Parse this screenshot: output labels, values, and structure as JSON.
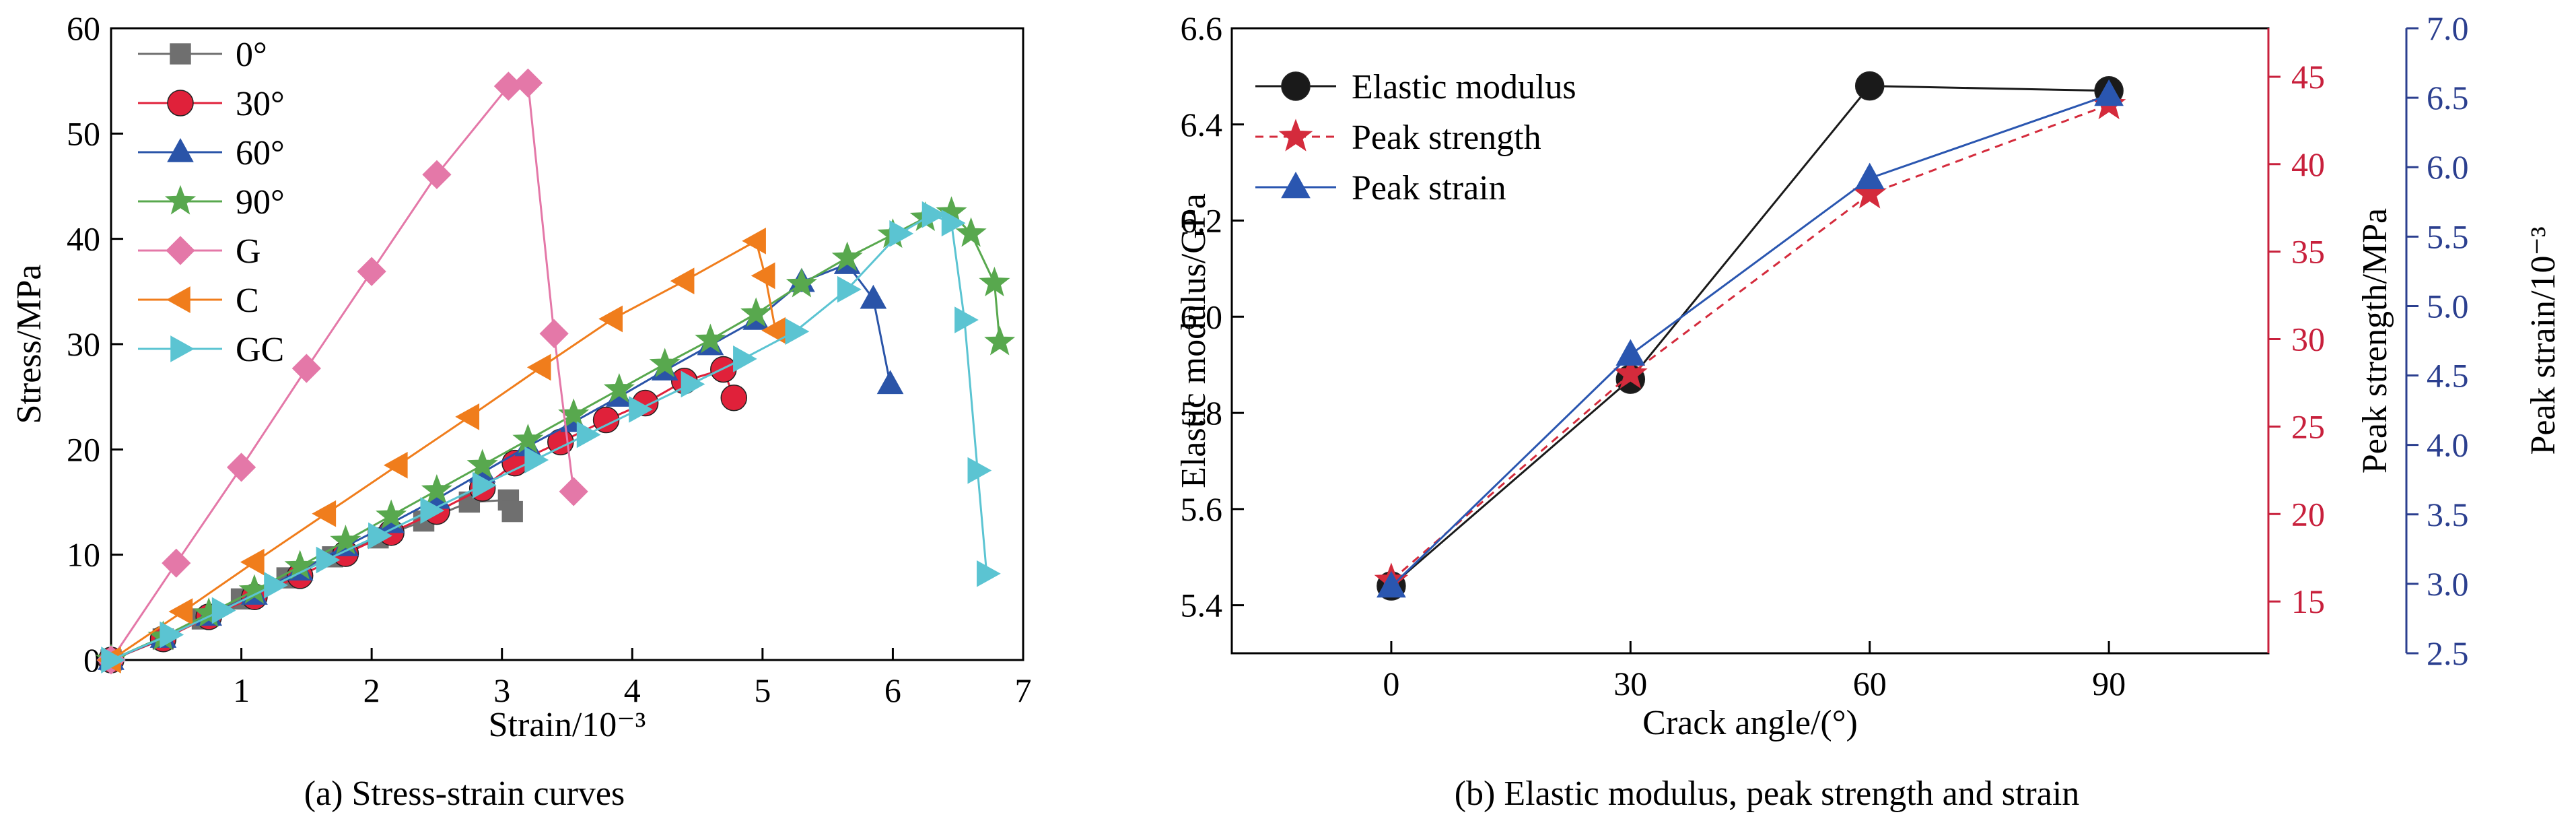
{
  "chart_data": [
    {
      "type": "line",
      "caption": "(a) Stress-strain curves",
      "xlabel": "Strain/10⁻³",
      "ylabel": "Stress/MPa",
      "xlim": [
        0,
        7
      ],
      "ylim": [
        0,
        60
      ],
      "xticks": [
        1,
        2,
        3,
        4,
        5,
        6,
        7
      ],
      "yticks": [
        0,
        10,
        20,
        30,
        40,
        50,
        60
      ],
      "grid": false,
      "legend_position": "top-left",
      "series": [
        {
          "name": "0°",
          "marker": "square",
          "color": "#6f6f6f",
          "x": [
            0.0,
            0.4,
            0.7,
            1.0,
            1.35,
            1.7,
            2.05,
            2.4,
            2.75,
            3.05,
            3.08
          ],
          "y": [
            0,
            2.0,
            3.9,
            5.8,
            7.8,
            9.8,
            11.6,
            13.2,
            15.0,
            15.2,
            14.1
          ]
        },
        {
          "name": "30°",
          "marker": "circle",
          "color": "#e0213a",
          "x": [
            0.0,
            0.4,
            0.75,
            1.1,
            1.45,
            1.8,
            2.15,
            2.5,
            2.85,
            3.1,
            3.45,
            3.8,
            4.1,
            4.4,
            4.7,
            4.78
          ],
          "y": [
            0,
            2.0,
            4.1,
            6.0,
            8.0,
            10.1,
            12.1,
            14.1,
            16.3,
            18.7,
            20.7,
            22.8,
            24.4,
            26.5,
            27.6,
            24.9
          ]
        },
        {
          "name": "60°",
          "marker": "triangle-up",
          "color": "#2a54a8",
          "x": [
            0.0,
            0.4,
            0.75,
            1.1,
            1.45,
            1.8,
            2.15,
            2.5,
            2.85,
            3.2,
            3.55,
            3.9,
            4.25,
            4.6,
            4.95,
            5.3,
            5.65,
            5.85,
            5.98
          ],
          "y": [
            0,
            2.1,
            4.2,
            6.2,
            8.5,
            10.8,
            13.0,
            15.3,
            17.8,
            20.3,
            22.6,
            25.0,
            27.5,
            29.9,
            32.3,
            35.9,
            37.6,
            34.3,
            26.2
          ]
        },
        {
          "name": "90°",
          "marker": "star",
          "color": "#58a84e",
          "x": [
            0.0,
            0.4,
            0.75,
            1.1,
            1.45,
            1.8,
            2.15,
            2.5,
            2.85,
            3.2,
            3.55,
            3.9,
            4.25,
            4.6,
            4.95,
            5.3,
            5.65,
            6.0,
            6.25,
            6.45,
            6.6,
            6.78,
            6.82
          ],
          "y": [
            0,
            2.2,
            4.4,
            6.6,
            8.9,
            11.3,
            13.7,
            16.1,
            18.5,
            20.9,
            23.3,
            25.7,
            28.1,
            30.4,
            32.9,
            35.7,
            38.2,
            40.4,
            42.0,
            42.5,
            40.5,
            35.8,
            30.2
          ]
        },
        {
          "name": "G",
          "marker": "diamond",
          "color": "#e478a8",
          "x": [
            0.0,
            0.5,
            1.0,
            1.5,
            2.0,
            2.5,
            3.05,
            3.2,
            3.4,
            3.55
          ],
          "y": [
            0,
            9.2,
            18.3,
            27.7,
            36.9,
            46.1,
            54.5,
            54.8,
            31.0,
            16.0
          ]
        },
        {
          "name": "C",
          "marker": "triangle-left",
          "color": "#f07d1c",
          "x": [
            0.0,
            0.55,
            1.1,
            1.65,
            2.2,
            2.75,
            3.3,
            3.85,
            4.4,
            4.95,
            5.02,
            5.1
          ],
          "y": [
            0,
            4.6,
            9.3,
            13.9,
            18.5,
            23.1,
            27.8,
            32.4,
            36.0,
            39.8,
            36.5,
            31.3
          ]
        },
        {
          "name": "GC",
          "marker": "triangle-right",
          "color": "#5bc4d2",
          "x": [
            0.0,
            0.45,
            0.85,
            1.25,
            1.65,
            2.05,
            2.45,
            2.85,
            3.25,
            3.65,
            4.05,
            4.45,
            4.85,
            5.25,
            5.65,
            6.05,
            6.3,
            6.45,
            6.55,
            6.65,
            6.72
          ],
          "y": [
            0,
            2.4,
            4.7,
            7.1,
            9.5,
            11.8,
            14.2,
            16.6,
            19.0,
            21.4,
            23.8,
            26.2,
            28.6,
            31.2,
            35.2,
            40.5,
            42.3,
            41.5,
            32.3,
            18.0,
            8.2
          ]
        }
      ]
    },
    {
      "type": "line",
      "caption": "(b) Elastic modulus, peak strength and strain",
      "xlabel": "Crack angle/(°)",
      "x": [
        0,
        30,
        60,
        90
      ],
      "xticks": [
        0,
        30,
        60,
        90
      ],
      "xlim": [
        -20,
        110
      ],
      "grid": false,
      "legend_position": "top-left",
      "axes": {
        "left": {
          "label": "Elastic modulus/GPa",
          "lim": [
            5.3,
            6.6
          ],
          "ticks": [
            5.4,
            5.6,
            5.8,
            6.0,
            6.2,
            6.4,
            6.6
          ],
          "color": "#000000",
          "decimals": 1
        },
        "right1": {
          "label": "Peak strength/MPa",
          "lim": [
            12.04,
            47.77
          ],
          "ticks": [
            15,
            20,
            25,
            30,
            35,
            40,
            45
          ],
          "color": "#c8203c",
          "decimals": 0
        },
        "right2": {
          "label": "Peak strain/10⁻³",
          "lim": [
            2.5,
            7.0
          ],
          "ticks": [
            2.5,
            3.0,
            3.5,
            4.0,
            4.5,
            5.0,
            5.5,
            6.0,
            6.5,
            7.0
          ],
          "color": "#2b3f8f",
          "decimals": 1
        }
      },
      "series": [
        {
          "name": "Elastic modulus",
          "axis": "left",
          "marker": "circle",
          "color": "#1a1a1a",
          "line": "solid",
          "values": [
            5.44,
            5.87,
            6.48,
            6.47
          ]
        },
        {
          "name": "Peak strength",
          "axis": "right1",
          "marker": "star",
          "color": "#d42b3c",
          "line": "dashed",
          "values": [
            16.2,
            28.0,
            38.3,
            43.4
          ]
        },
        {
          "name": "Peak strain",
          "axis": "right2",
          "marker": "triangle-up",
          "color": "#2a56b0",
          "line": "solid",
          "values": [
            2.98,
            4.65,
            5.92,
            6.52
          ]
        }
      ]
    }
  ]
}
